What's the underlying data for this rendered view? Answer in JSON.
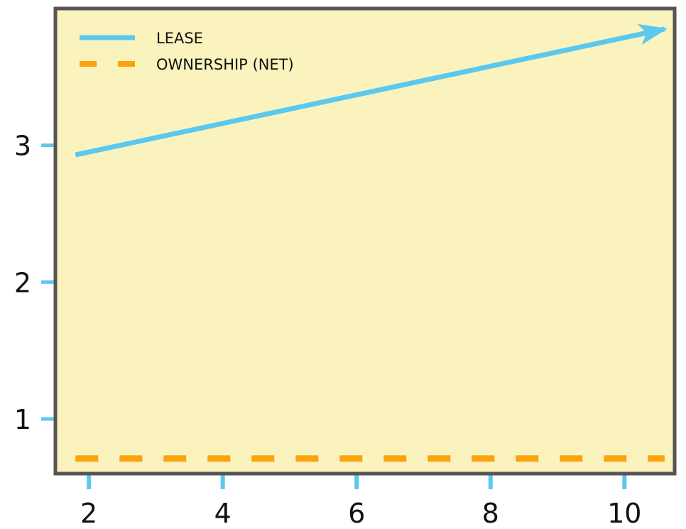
{
  "chart_data": {
    "type": "line",
    "title": "",
    "xlabel": "",
    "ylabel": "",
    "xlim": [
      1.5,
      10.75
    ],
    "ylim": [
      0.6,
      4.0
    ],
    "x_ticks": [
      2,
      4,
      6,
      8,
      10
    ],
    "y_ticks": [
      1,
      2,
      3
    ],
    "x_tick_labels": [
      "2",
      "4",
      "6",
      "8",
      "10"
    ],
    "y_tick_labels": [
      "1",
      "2",
      "3"
    ],
    "grid": false,
    "legend_position": "top-left",
    "colors": {
      "plot_background": "#faf3bd",
      "frame": "#555555",
      "ticks": "#5bc8ef"
    },
    "series": [
      {
        "name": "LEASE",
        "style": "solid",
        "end_marker": "arrow",
        "color": "#5bc8ef",
        "x": [
          1.8,
          10.6
        ],
        "y": [
          2.93,
          3.85
        ]
      },
      {
        "name": "OWNERSHIP (NET)",
        "style": "dashed",
        "color": "#fba20d",
        "x": [
          1.8,
          10.6
        ],
        "y": [
          0.71,
          0.71
        ]
      }
    ]
  }
}
